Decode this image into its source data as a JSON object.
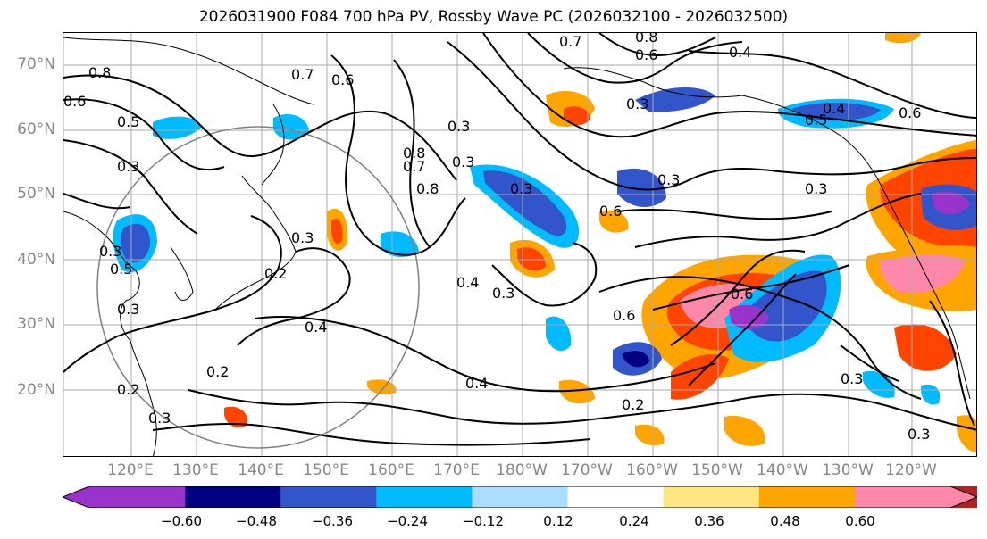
{
  "title": "2026031900 F084 700 hPa PV, Rossby Wave PC (2026032100 - 2026032500)",
  "lat_labels": [
    "70°N",
    "60°N",
    "50°N",
    "40°N",
    "30°N",
    "20°N"
  ],
  "lon_labels": [
    "120°E",
    "130°E",
    "140°E",
    "150°E",
    "160°E",
    "170°E",
    "180°W",
    "170°W",
    "160°W",
    "150°W",
    "140°W",
    "130°W",
    "120°W"
  ],
  "colorbar": {
    "ticks": [
      "−0.60",
      "−0.48",
      "−0.36",
      "−0.24",
      "−0.12",
      "0.12",
      "0.24",
      "0.36",
      "0.48",
      "0.60"
    ],
    "colors": [
      "#9933cc",
      "#000080",
      "#3355cc",
      "#00bbff",
      "#aaddff",
      "#ffffff",
      "#ffe680",
      "#ffa500",
      "#ff4400",
      "#b22222",
      "#ff88aa"
    ]
  },
  "contour_labels": [
    "0.8",
    "0.7",
    "0.6",
    "0.8",
    "0.6",
    "0.5",
    "0.3",
    "0.7",
    "0.8",
    "0.6",
    "0.4",
    "0.3",
    "0.6",
    "0.5",
    "0.4",
    "0.3",
    "0.3",
    "0.7",
    "0.8",
    "0.3",
    "0.3",
    "0.3",
    "0.6",
    "0.3",
    "0.3",
    "0.2",
    "0.4",
    "0.3",
    "0.6",
    "0.6",
    "0.2",
    "0.4",
    "0.2",
    "0.4",
    "0.2",
    "0.3",
    "0.3",
    "0.3",
    "0.5",
    "0.3"
  ],
  "colors": {
    "grid": "#aaaaaa",
    "axis_label": "#888888",
    "contour": "#000000",
    "circle": "#808080"
  }
}
